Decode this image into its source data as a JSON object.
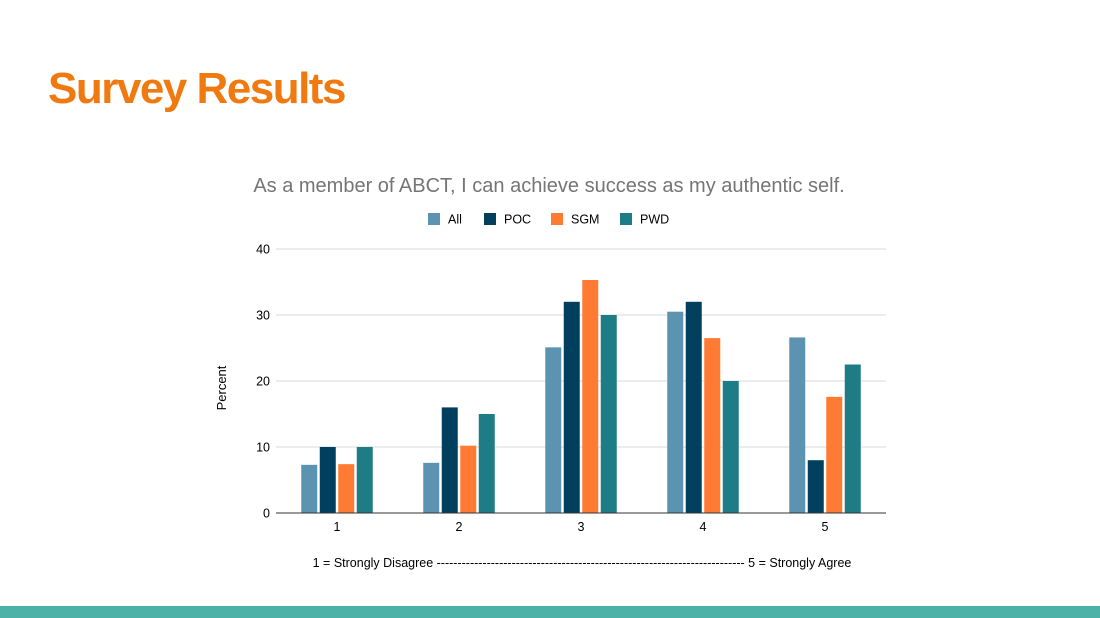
{
  "slide": {
    "title": "Survey Results",
    "title_color": "#f07a10",
    "bar_color": "#4cb1a7"
  },
  "chart_data": {
    "type": "bar",
    "title": "As a member of ABCT, I can achieve success as my authentic self.",
    "xlabel": "",
    "ylabel": "Percent",
    "categories": [
      "1",
      "2",
      "3",
      "4",
      "5"
    ],
    "ylim": [
      0,
      40
    ],
    "yticks": [
      "0",
      "10",
      "20",
      "30",
      "40"
    ],
    "grid": true,
    "legend_position": "top",
    "series": [
      {
        "name": "All",
        "color": "#5b93b1",
        "values": [
          7.3,
          7.6,
          25.1,
          30.5,
          26.6
        ]
      },
      {
        "name": "POC",
        "color": "#00405e",
        "values": [
          10.0,
          16.0,
          32.0,
          32.0,
          8.0
        ]
      },
      {
        "name": "SGM",
        "color": "#ff7a33",
        "values": [
          7.4,
          10.2,
          35.3,
          26.5,
          17.6
        ]
      },
      {
        "name": "PWD",
        "color": "#1e7c87",
        "values": [
          10.0,
          15.0,
          30.0,
          20.0,
          22.5
        ]
      }
    ],
    "scale_note": "1 = Strongly Disagree -------------------------------------------------------------------------- 5 = Strongly Agree"
  }
}
